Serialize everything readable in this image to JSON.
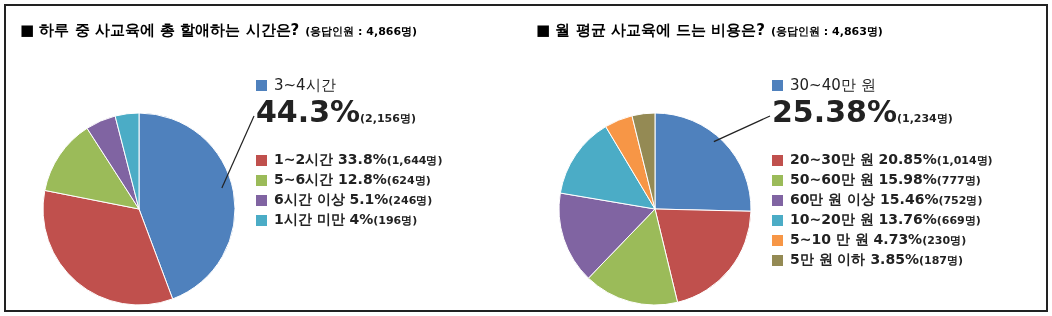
{
  "chart_data": [
    {
      "type": "pie",
      "title": "■ 하루 중 사교육에 총 할애하는 시간은?",
      "subtitle": "(응답인원 : 4,866명)",
      "legend": "right",
      "categories": [
        "3~4시간",
        "1~2시간",
        "5~6시간",
        "6시간 이상",
        "1시간 미만"
      ],
      "values": [
        44.3,
        33.8,
        12.8,
        5.1,
        4
      ],
      "colors": [
        "#4f81bd",
        "#c0504d",
        "#9bbb59",
        "#8064a2",
        "#4bacc6"
      ],
      "value_labels": [
        "44.3%(2,156명)",
        "33.8%(1,644명)",
        "12.8%(624명)",
        "5.1%(246명)",
        "4%(196명)"
      ]
    },
    {
      "type": "pie",
      "title": "■ 월 평균 사교육에 드는 비용은?",
      "subtitle": "(응답인원 : 4,863명)",
      "legend": "right",
      "categories": [
        "30~40만 원",
        "20~30만 원",
        "50~60만 원",
        "60만 원 이상",
        "10~20만 원",
        "5~10 만 원",
        "5만 원 이하"
      ],
      "values": [
        25.38,
        20.85,
        15.98,
        15.46,
        13.76,
        4.73,
        3.85
      ],
      "colors": [
        "#4f81bd",
        "#c0504d",
        "#9bbb59",
        "#8064a2",
        "#4bacc6",
        "#f79646",
        "#948a54"
      ],
      "value_labels": [
        "25.38%(1,234명)",
        "20.85%(1,014명)",
        "15.98%(777명)",
        "15.46%(752명)",
        "13.76%(669명)",
        "4.73%(230명)",
        "3.85%(187명)"
      ]
    }
  ]
}
